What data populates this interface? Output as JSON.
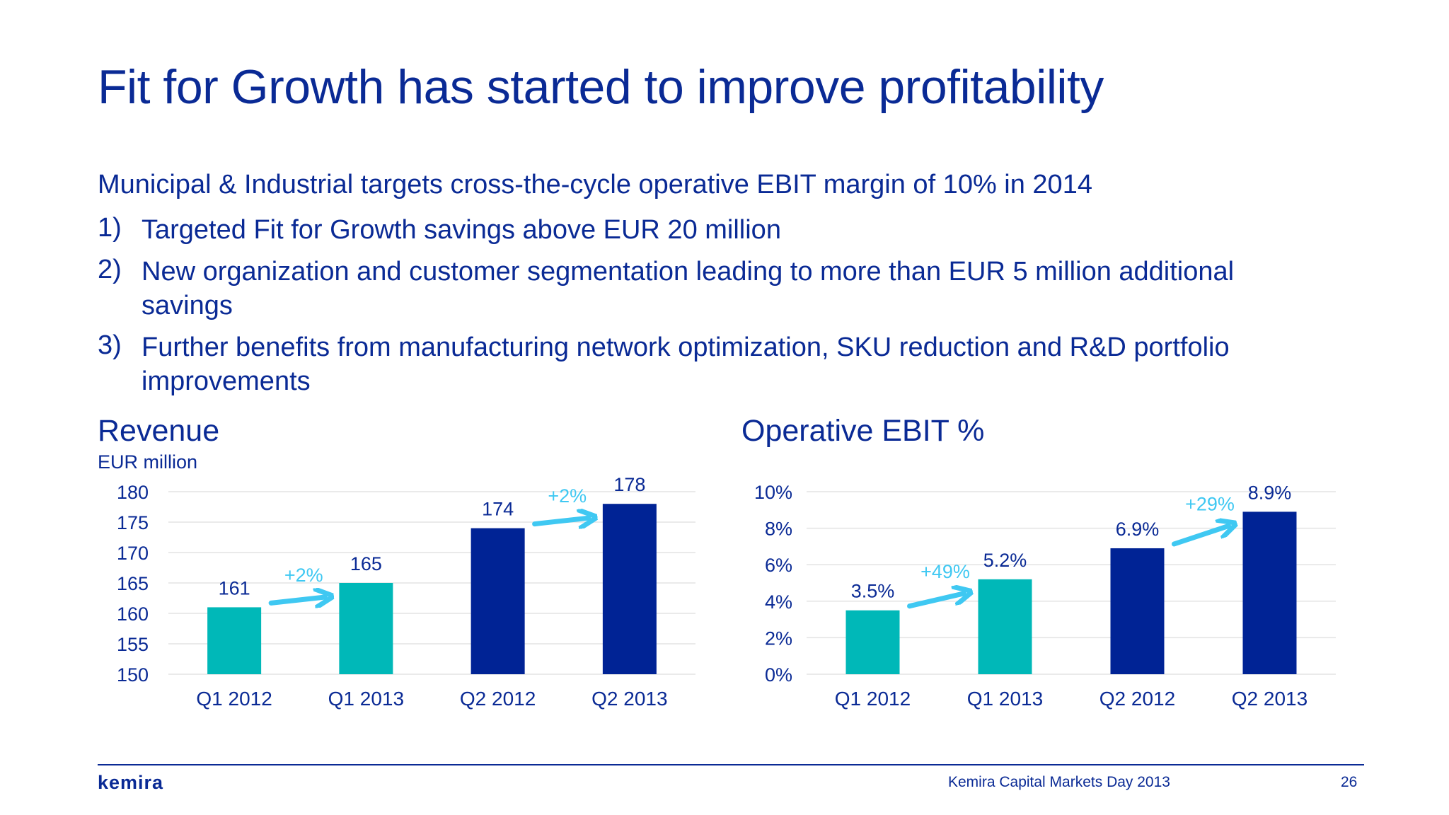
{
  "slide": {
    "title": "Fit for Growth has started to improve profitability",
    "intro": "Municipal & Industrial targets cross-the-cycle operative EBIT margin of 10% in 2014",
    "items": [
      {
        "num": "1)",
        "text": "Targeted Fit for Growth savings above EUR 20 million"
      },
      {
        "num": "2)",
        "text": "New organization and customer segmentation leading to more than EUR 5 million additional savings"
      },
      {
        "num": "3)",
        "text": "Further benefits from manufacturing network optimization, SKU reduction and R&D portfolio improvements"
      }
    ]
  },
  "colors": {
    "teal": "#00b8b8",
    "navy": "#002395",
    "arrow": "#3fc8f2",
    "text": "#0a2a95",
    "grid": "#e3e3e3"
  },
  "chart_data": [
    {
      "type": "bar",
      "title": "Revenue",
      "ylabel": "EUR million",
      "categories": [
        "Q1 2012",
        "Q1 2013",
        "Q2 2012",
        "Q2 2013"
      ],
      "values": [
        161,
        165,
        174,
        178
      ],
      "value_labels": [
        "161",
        "165",
        "174",
        "178"
      ],
      "bar_colors": [
        "teal",
        "teal",
        "navy",
        "navy"
      ],
      "ylim": [
        150,
        180
      ],
      "yticks": [
        150,
        155,
        160,
        165,
        170,
        175,
        180
      ],
      "ytick_labels": [
        "150",
        "155",
        "160",
        "165",
        "170",
        "175",
        "180"
      ],
      "grid": true,
      "annotations": [
        {
          "text": "+2%",
          "from": 0,
          "to": 1
        },
        {
          "text": "+2%",
          "from": 2,
          "to": 3
        }
      ]
    },
    {
      "type": "bar",
      "title": "Operative EBIT %",
      "ylabel": "",
      "categories": [
        "Q1 2012",
        "Q1 2013",
        "Q2 2012",
        "Q2 2013"
      ],
      "values": [
        3.5,
        5.2,
        6.9,
        8.9
      ],
      "value_labels": [
        "3.5%",
        "5.2%",
        "6.9%",
        "8.9%"
      ],
      "bar_colors": [
        "teal",
        "teal",
        "navy",
        "navy"
      ],
      "ylim": [
        0,
        10
      ],
      "yticks": [
        0,
        2,
        4,
        6,
        8,
        10
      ],
      "ytick_labels": [
        "0%",
        "2%",
        "4%",
        "6%",
        "8%",
        "10%"
      ],
      "grid": true,
      "annotations": [
        {
          "text": "+49%",
          "from": 0,
          "to": 1
        },
        {
          "text": "+29%",
          "from": 2,
          "to": 3
        }
      ]
    }
  ],
  "footer": {
    "logo": "kemira",
    "event": "Kemira Capital Markets Day 2013",
    "page": "26"
  }
}
